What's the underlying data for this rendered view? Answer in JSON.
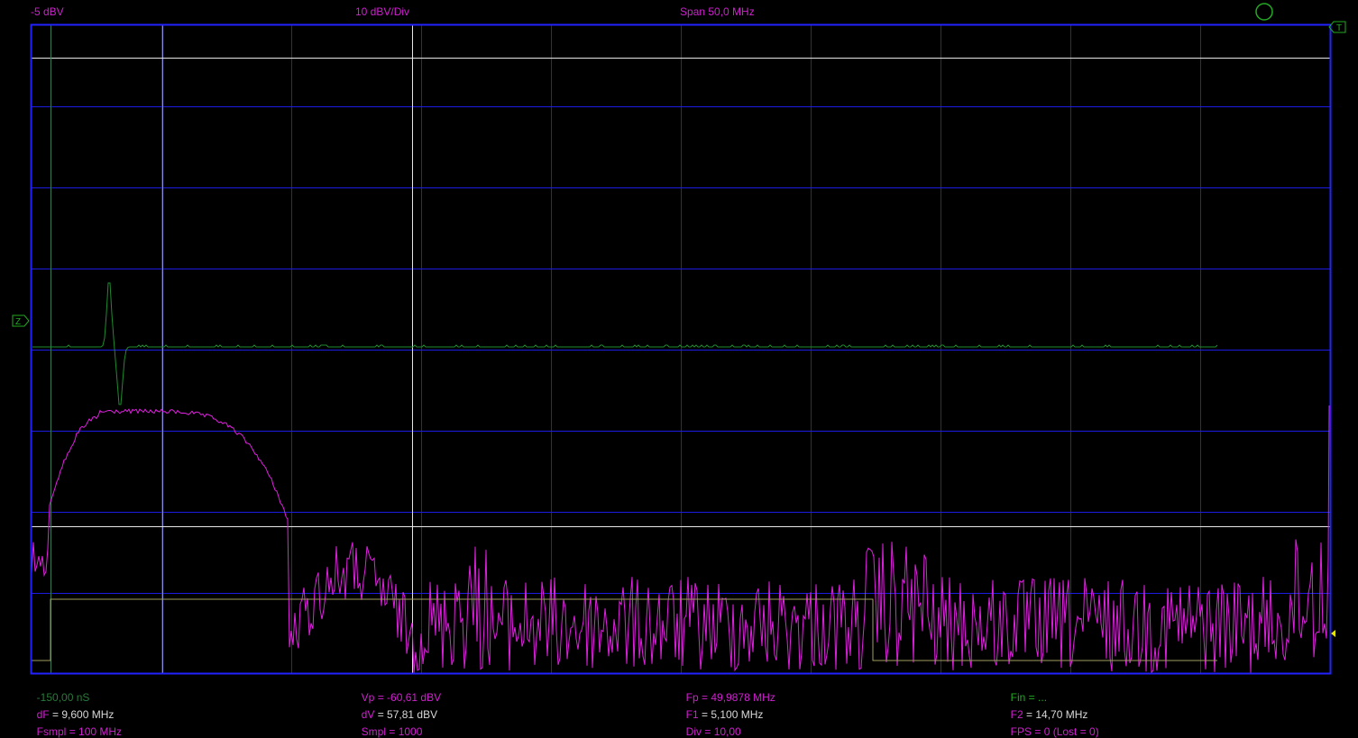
{
  "header": {
    "ref_level": "-5 dBV",
    "scale": "10 dBV/Div",
    "span": "Span 50,0 MHz"
  },
  "markers": {
    "left_trigger": "Z",
    "right_trigger": "T"
  },
  "readouts": {
    "time": "-150,00 nS",
    "vp_key": "Vp",
    "vp_val": " = -60,61 dBV",
    "fp_key": "Fp",
    "fp_val": " = 49,9878 MHz",
    "fin_key": "Fin",
    "fin_val": " = ...",
    "df_key": "dF",
    "df_val": " = 9,600 MHz",
    "dv_key": "dV",
    "dv_val": " = 57,81 dBV",
    "f1_key": "F1",
    "f1_val": " = 5,100 MHz",
    "f2_key": "F2",
    "f2_val": " = 14,70 MHz",
    "fsmpl_key": "Fsmpl",
    "fsmpl_val": " = 100 MHz",
    "smpl_key": "Smpl",
    "smpl_val": " = 1000",
    "div_key": "Div",
    "div_val": " = 10,00",
    "fps_key": "FPS",
    "fps_val": " = 0 (Lost = 0)"
  },
  "colors": {
    "grid": "#1c1ce0",
    "spectrum": "#e020e0",
    "time_trace": "#1f8a2f",
    "cursor": "#e6e6e6",
    "limit": "#a0a060"
  }
}
